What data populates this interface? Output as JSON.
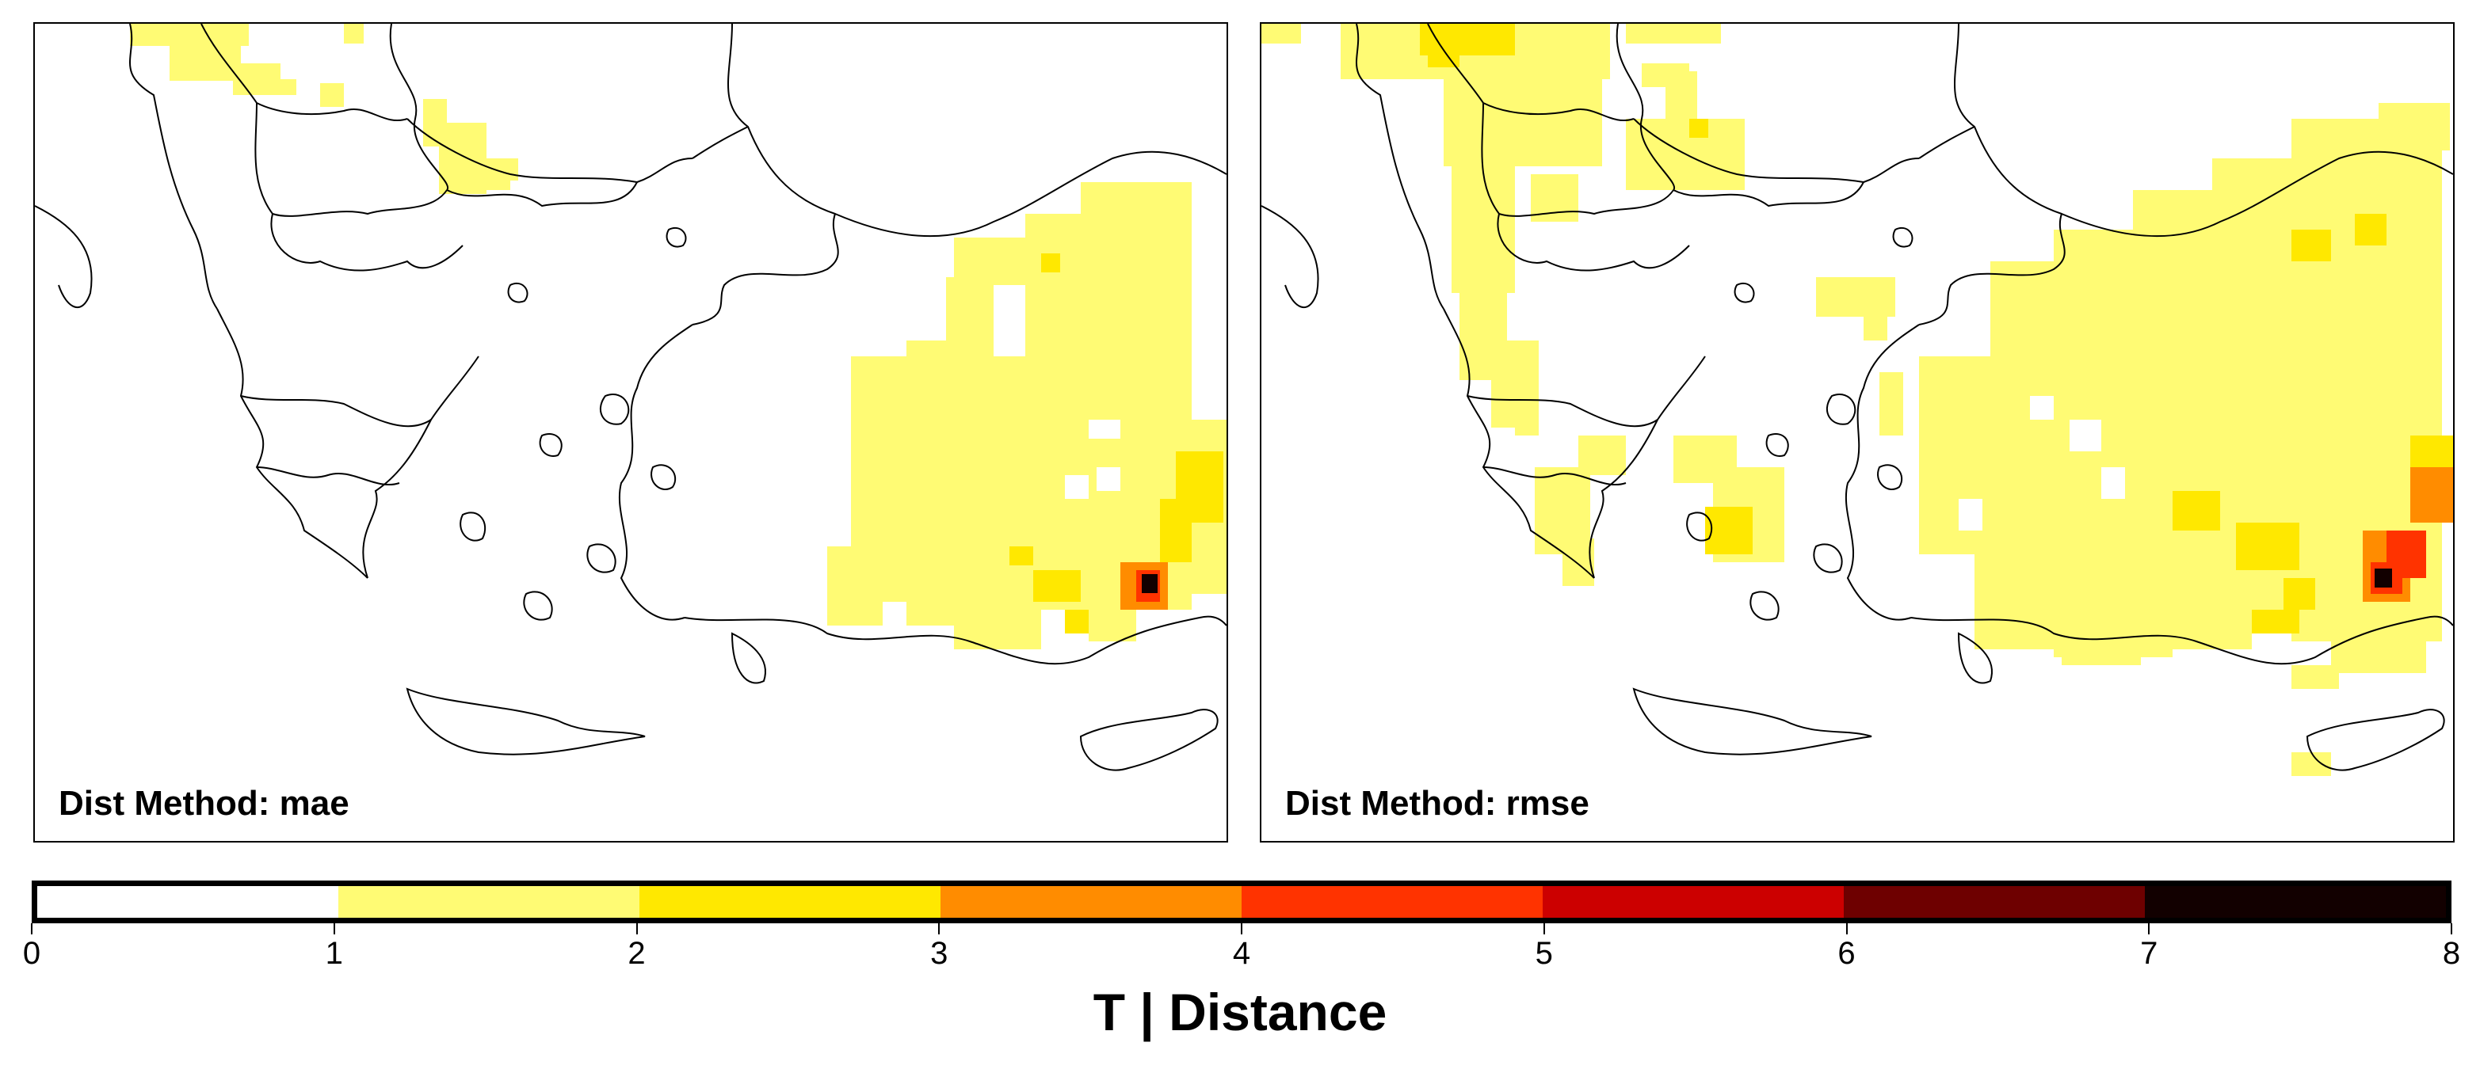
{
  "panels": [
    {
      "label": "Dist Method: mae"
    },
    {
      "label": "Dist Method: rmse"
    }
  ],
  "colorbar": {
    "title": "T | Distance",
    "ticks": [
      "0",
      "1",
      "2",
      "3",
      "4",
      "5",
      "6",
      "7",
      "8"
    ],
    "colors": [
      "#ffffff",
      "#fffb74",
      "#ffe800",
      "#ff8c00",
      "#ff3300",
      "#cc0000",
      "#6e0000",
      "#120000"
    ]
  },
  "map_colors": {
    "level1": "#fffb74",
    "level2": "#ffe800",
    "level3": "#ff8c00",
    "level4": "#ff3300",
    "level7": "#120000"
  }
}
